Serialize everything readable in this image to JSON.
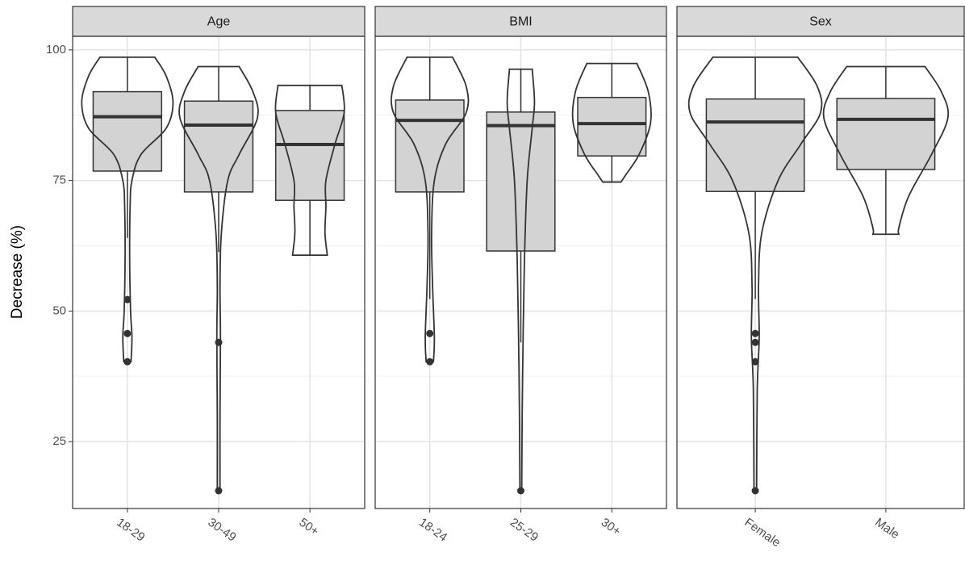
{
  "chart_data": [
    {
      "type": "box",
      "title": "Age",
      "ylabel": "Decrease (%)",
      "categories": [
        "18-29",
        "30-49",
        "50+"
      ],
      "box_color": "#d3d3d3",
      "line_color": "#333333",
      "strip_color": "#d9d9d9",
      "grid": true,
      "ylim": [
        12.2,
        102.6
      ],
      "yticks": [
        25,
        50,
        75,
        100
      ],
      "minor_yticks": [
        37.5,
        62.5,
        87.5
      ],
      "boxes": [
        {
          "min": 64.0,
          "q1": 76.8,
          "median": 87.2,
          "q3": 92.0,
          "max": 98.6,
          "outliers": [
            52.2,
            45.7,
            40.3
          ]
        },
        {
          "min": 61.3,
          "q1": 72.8,
          "median": 85.6,
          "q3": 90.2,
          "max": 96.8,
          "outliers": [
            44.0,
            15.6
          ]
        },
        {
          "min": 60.7,
          "q1": 71.2,
          "median": 81.9,
          "q3": 88.4,
          "max": 93.2,
          "outliers": []
        }
      ],
      "violins": [
        {
          "y": [
            98.6,
            95,
            90,
            85,
            80,
            75,
            70,
            60,
            50,
            45,
            40.3
          ],
          "density": [
            0.6,
            0.85,
            1.0,
            0.85,
            0.3,
            0.1,
            0.06,
            0.05,
            0.07,
            0.1,
            0.08
          ]
        },
        {
          "y": [
            96.8,
            92,
            87,
            80,
            75,
            65,
            55,
            45,
            30,
            15.6
          ],
          "density": [
            0.45,
            0.75,
            0.85,
            0.45,
            0.2,
            0.06,
            0.03,
            0.04,
            0.03,
            0.03
          ]
        },
        {
          "y": [
            93.2,
            88,
            82,
            75,
            70,
            65,
            60.7
          ],
          "density": [
            0.7,
            0.75,
            0.55,
            0.35,
            0.35,
            0.33,
            0.38
          ]
        }
      ]
    },
    {
      "type": "box",
      "title": "BMI",
      "categories": [
        "18-24",
        "25-29",
        "30+"
      ],
      "box_color": "#d3d3d3",
      "line_color": "#333333",
      "strip_color": "#d9d9d9",
      "grid": true,
      "ylim": [
        12.2,
        102.6
      ],
      "yticks": [
        25,
        50,
        75,
        100
      ],
      "minor_yticks": [
        37.5,
        62.5,
        87.5
      ],
      "boxes": [
        {
          "min": 52.3,
          "q1": 72.8,
          "median": 86.5,
          "q3": 90.4,
          "max": 98.6,
          "outliers": [
            45.7,
            40.3
          ]
        },
        {
          "min": 44.0,
          "q1": 61.5,
          "median": 85.5,
          "q3": 88.1,
          "max": 96.3,
          "outliers": [
            15.6
          ]
        },
        {
          "min": 74.7,
          "q1": 79.7,
          "median": 85.9,
          "q3": 90.9,
          "max": 97.4,
          "outliers": []
        }
      ],
      "violins": [
        {
          "y": [
            98.6,
            93,
            88,
            82,
            75,
            65,
            55,
            45,
            40.3
          ],
          "density": [
            0.5,
            0.8,
            0.8,
            0.35,
            0.1,
            0.04,
            0.06,
            0.1,
            0.08
          ]
        },
        {
          "y": [
            96.3,
            90,
            85,
            75,
            60,
            45,
            30,
            15.6
          ],
          "density": [
            0.25,
            0.3,
            0.25,
            0.14,
            0.08,
            0.05,
            0.03,
            0.02
          ]
        },
        {
          "y": [
            97.4,
            92,
            86,
            80,
            76,
            74.7
          ],
          "density": [
            0.55,
            0.8,
            0.85,
            0.6,
            0.3,
            0.2
          ]
        }
      ]
    },
    {
      "type": "box",
      "title": "Sex",
      "categories": [
        "Female",
        "Male"
      ],
      "box_color": "#d3d3d3",
      "line_color": "#333333",
      "strip_color": "#d9d9d9",
      "grid": true,
      "ylim": [
        12.2,
        102.6
      ],
      "yticks": [
        25,
        50,
        75,
        100
      ],
      "minor_yticks": [
        37.5,
        62.5,
        87.5
      ],
      "boxes": [
        {
          "min": 52.3,
          "q1": 72.9,
          "median": 86.2,
          "q3": 90.6,
          "max": 98.6,
          "outliers": [
            45.7,
            44.0,
            40.3,
            15.6
          ]
        },
        {
          "min": 64.7,
          "q1": 77.1,
          "median": 86.7,
          "q3": 90.7,
          "max": 96.8,
          "outliers": []
        }
      ],
      "violins": [
        {
          "y": [
            98.6,
            93,
            88,
            82,
            75,
            65,
            55,
            45,
            35,
            15.6
          ],
          "density": [
            0.65,
            0.95,
            1.0,
            0.7,
            0.35,
            0.1,
            0.05,
            0.06,
            0.03,
            0.02
          ]
        },
        {
          "y": [
            96.8,
            92,
            87,
            80,
            72,
            66,
            64.7
          ],
          "density": [
            0.6,
            0.85,
            0.95,
            0.7,
            0.35,
            0.2,
            0.2
          ]
        }
      ]
    }
  ]
}
